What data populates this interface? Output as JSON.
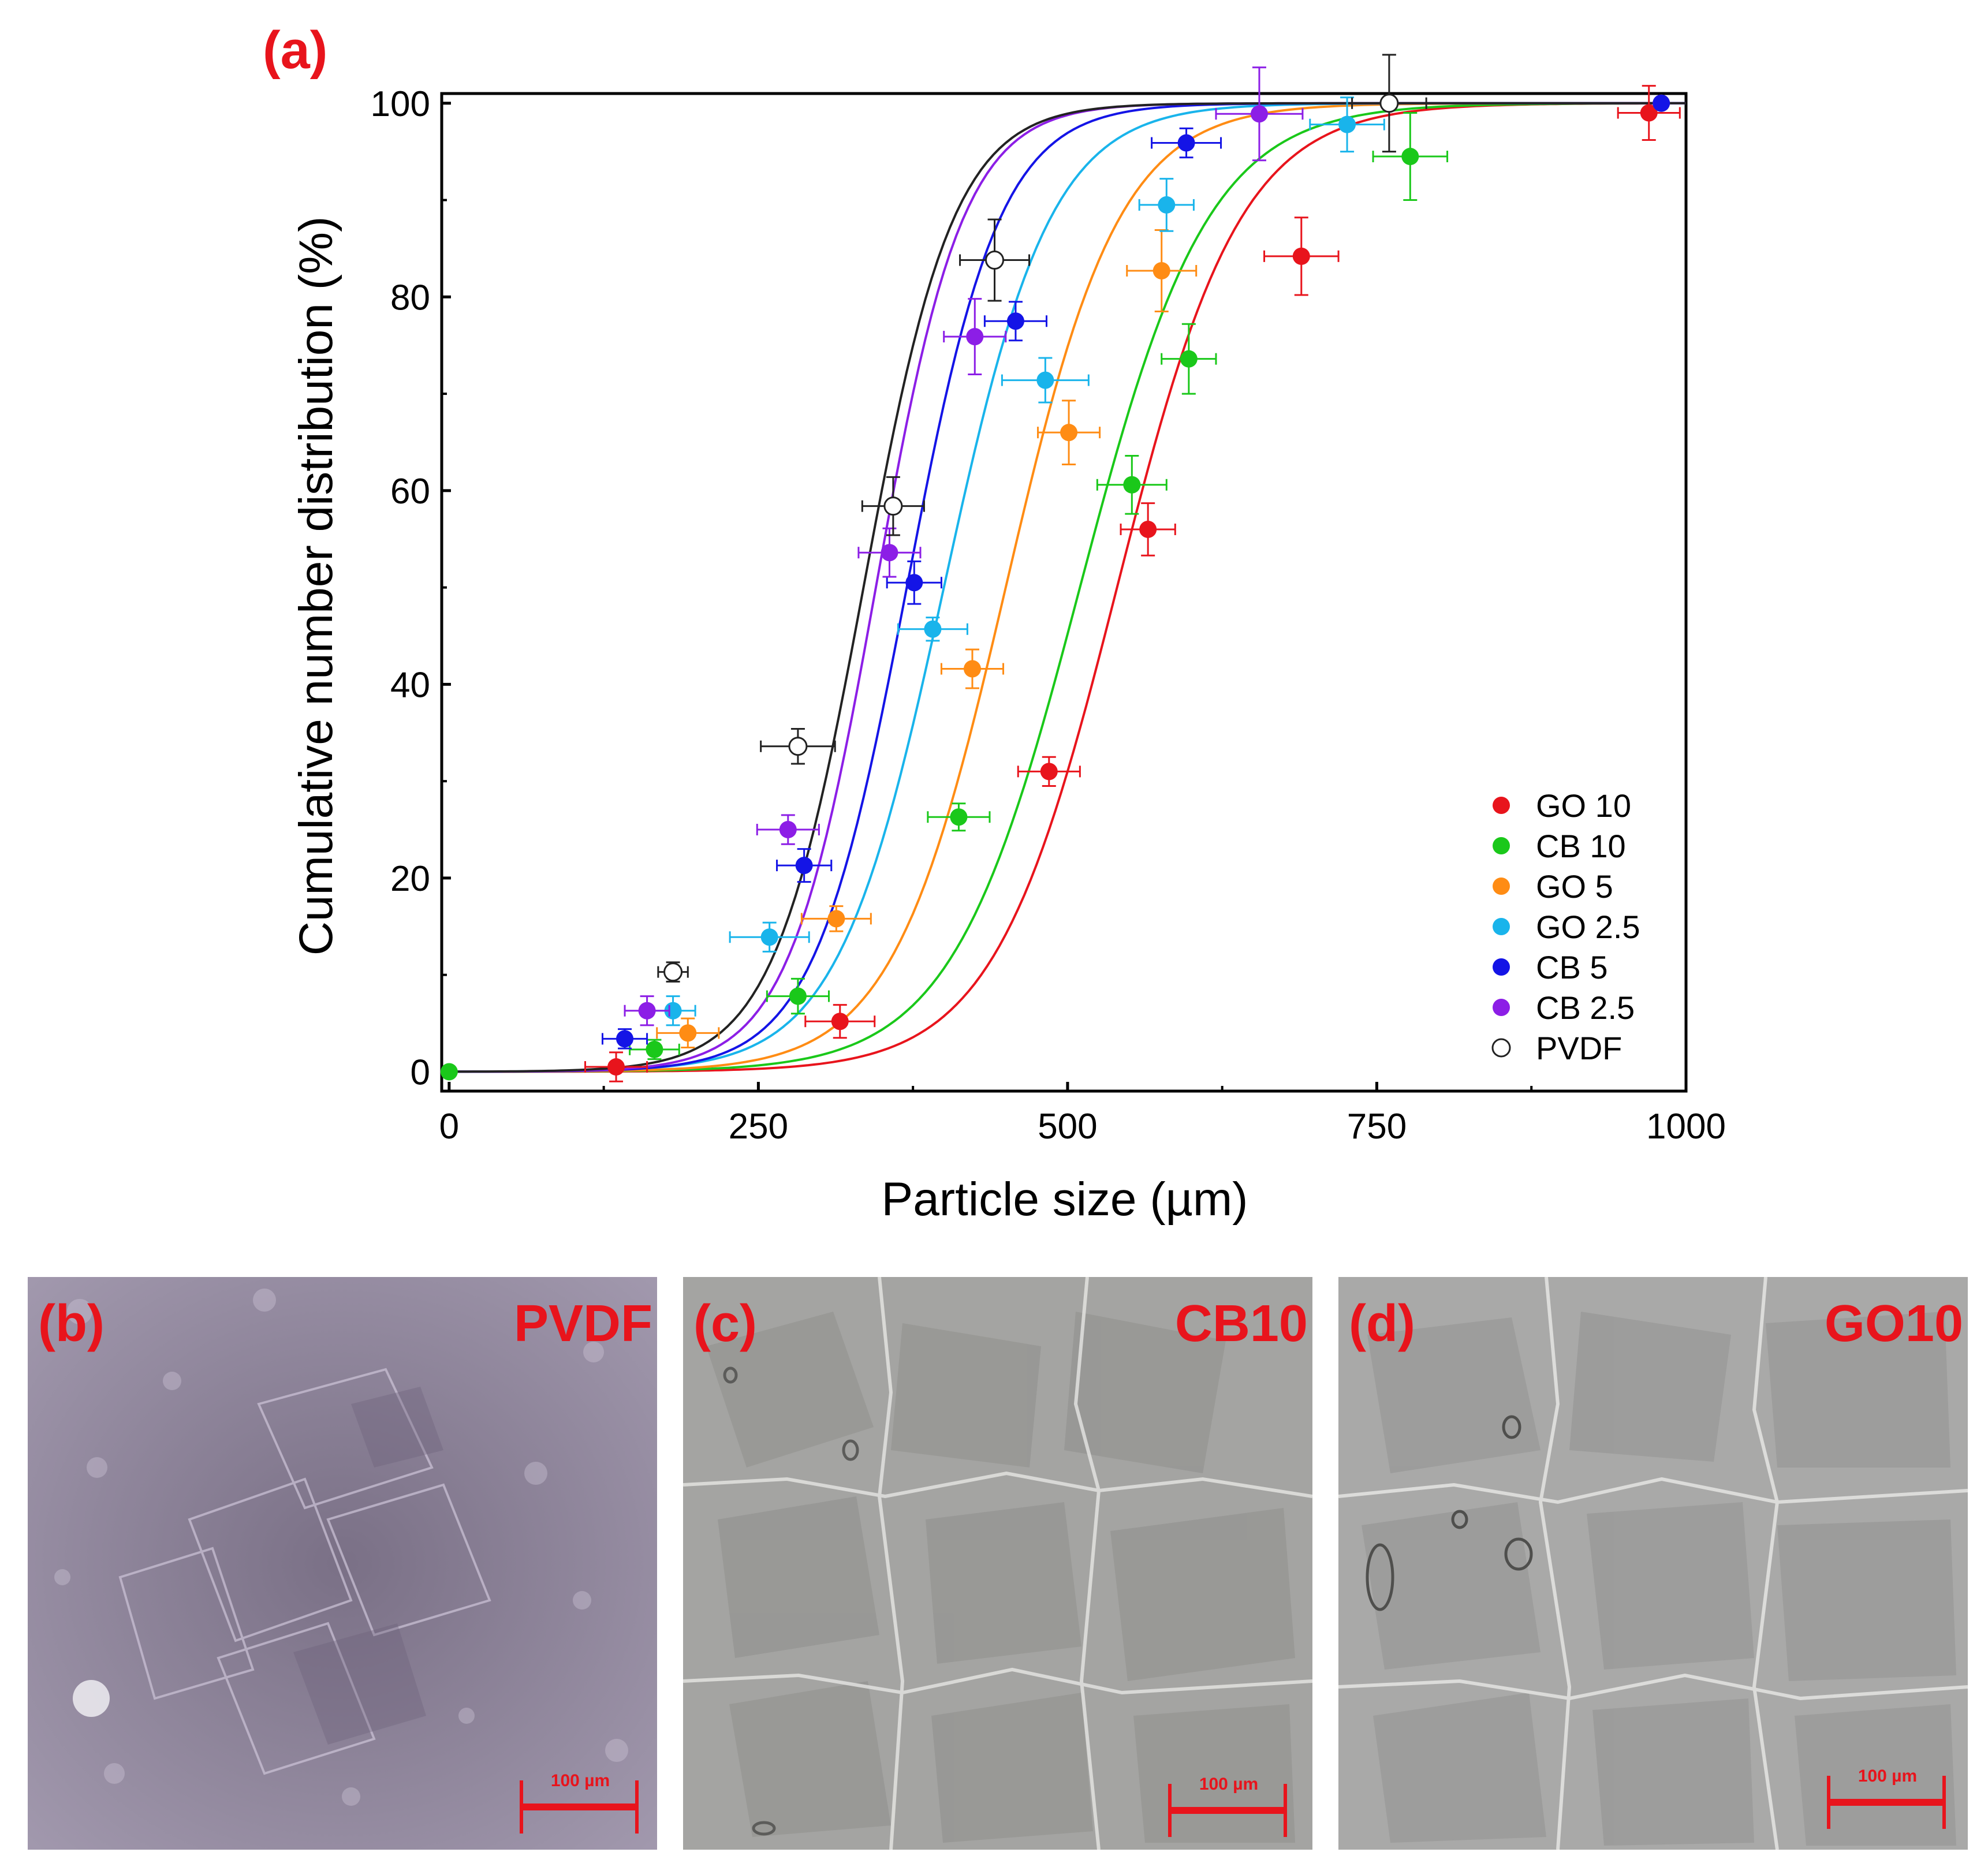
{
  "panel_a_label": "(a)",
  "chart_data": {
    "type": "scatter",
    "xlabel": "Particle size (µm)",
    "ylabel": "Cumulative number distribution (%)",
    "xlim": [
      0,
      1000
    ],
    "ylim": [
      0,
      100
    ],
    "xticks": [
      "0",
      "250",
      "500",
      "750",
      "1000"
    ],
    "yticks": [
      "0",
      "20",
      "40",
      "60",
      "80",
      "100"
    ],
    "grid": false,
    "legend_position": "lower-right",
    "fit_curves": true,
    "series": [
      {
        "name": "GO 10",
        "color": "#e8141c",
        "filled": true,
        "points": [
          [
            135,
            0.5
          ],
          [
            316,
            5.2
          ],
          [
            485,
            31
          ],
          [
            565,
            56
          ],
          [
            689,
            84.2
          ],
          [
            970,
            99
          ]
        ],
        "x_err": [
          25,
          28,
          25,
          22,
          30,
          25
        ],
        "y_err": [
          1.5,
          1.7,
          1.5,
          2.7,
          4,
          2.8
        ]
      },
      {
        "name": "CB 10",
        "color": "#1ac81a",
        "filled": true,
        "points": [
          [
            0,
            0
          ],
          [
            166,
            2.3
          ],
          [
            282,
            7.8
          ],
          [
            412,
            26.3
          ],
          [
            552,
            60.6
          ],
          [
            598,
            73.6
          ],
          [
            777,
            94.5
          ]
        ],
        "x_err": [
          0,
          20,
          25,
          25,
          28,
          22,
          30
        ],
        "y_err": [
          0,
          1,
          1.8,
          1.4,
          3,
          3.6,
          4.5
        ]
      },
      {
        "name": "GO 5",
        "color": "#ff8c14",
        "filled": true,
        "points": [
          [
            193,
            4
          ],
          [
            313,
            15.8
          ],
          [
            423,
            41.6
          ],
          [
            501,
            66
          ],
          [
            576,
            82.7
          ],
          [
            980,
            100
          ]
        ],
        "x_err": [
          25,
          28,
          25,
          25,
          28,
          0
        ],
        "y_err": [
          1.5,
          1.3,
          2,
          3.3,
          4.2,
          0
        ]
      },
      {
        "name": "GO 2.5",
        "color": "#19b4eb",
        "filled": true,
        "points": [
          [
            181,
            6.3
          ],
          [
            259,
            13.9
          ],
          [
            391,
            45.7
          ],
          [
            482,
            71.4
          ],
          [
            580,
            89.5
          ],
          [
            726,
            97.8
          ]
        ],
        "x_err": [
          18,
          32,
          28,
          35,
          22,
          30
        ],
        "y_err": [
          1.5,
          1.5,
          1.2,
          2.3,
          2.7,
          2.8
        ]
      },
      {
        "name": "CB 5",
        "color": "#1414e6",
        "filled": true,
        "points": [
          [
            142,
            3.4
          ],
          [
            287,
            21.3
          ],
          [
            376,
            50.5
          ],
          [
            458,
            77.5
          ],
          [
            596,
            95.9
          ],
          [
            980,
            100
          ]
        ],
        "x_err": [
          18,
          22,
          22,
          25,
          28,
          0
        ],
        "y_err": [
          1,
          1.7,
          2.2,
          2,
          1.5,
          0
        ]
      },
      {
        "name": "CB 2.5",
        "color": "#8c1ee6",
        "filled": true,
        "points": [
          [
            160,
            6.3
          ],
          [
            274,
            25
          ],
          [
            356,
            53.6
          ],
          [
            425,
            75.9
          ],
          [
            655,
            98.9
          ]
        ],
        "x_err": [
          18,
          25,
          25,
          25,
          35
        ],
        "y_err": [
          1.5,
          1.5,
          2.5,
          3.9,
          4.8
        ]
      },
      {
        "name": "PVDF",
        "color": "#222222",
        "filled": false,
        "points": [
          [
            181,
            10.3
          ],
          [
            282,
            33.6
          ],
          [
            359,
            58.4
          ],
          [
            441,
            83.8
          ],
          [
            760,
            100
          ]
        ],
        "x_err": [
          12,
          30,
          25,
          28,
          30
        ],
        "y_err": [
          1,
          1.8,
          3,
          4.2,
          5
        ]
      }
    ],
    "fits": [
      {
        "name": "GO 10",
        "mu": 540,
        "s": 85
      },
      {
        "name": "CB 10",
        "mu": 510,
        "s": 88
      },
      {
        "name": "GO 5",
        "mu": 450,
        "s": 78
      },
      {
        "name": "GO 2.5",
        "mu": 400,
        "s": 73
      },
      {
        "name": "CB 5",
        "mu": 370,
        "s": 64
      },
      {
        "name": "CB 2.5",
        "mu": 345,
        "s": 60
      },
      {
        "name": "PVDF",
        "mu": 335,
        "s": 62
      }
    ]
  },
  "micrographs": [
    {
      "panel": "(b)",
      "sample": "PVDF",
      "scale_bar": "100 µm",
      "tone": "#8d8496"
    },
    {
      "panel": "(c)",
      "sample": "CB10",
      "scale_bar": "100 µm",
      "tone": "#a4a4a2"
    },
    {
      "panel": "(d)",
      "sample": "GO10",
      "scale_bar": "100 µm",
      "tone": "#a9a9a8"
    }
  ],
  "colors": {
    "label_red": "#e8141c"
  }
}
